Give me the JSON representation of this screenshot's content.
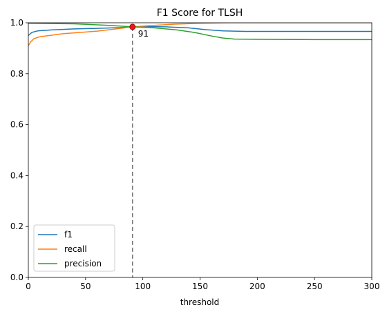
{
  "chart_data": {
    "type": "line",
    "title": "F1 Score for TLSH",
    "xlabel": "threshold",
    "ylabel": "",
    "xlim": [
      0,
      300
    ],
    "ylim": [
      0,
      1.0
    ],
    "xticks": [
      "0",
      "50",
      "100",
      "150",
      "200",
      "250",
      "300"
    ],
    "yticks": [
      "0.0",
      "0.2",
      "0.4",
      "0.6",
      "0.8",
      "1.0"
    ],
    "grid": false,
    "legend_position": "lower-left",
    "series": [
      {
        "name": "f1",
        "color": "#1f77b4",
        "points": [
          [
            0,
            0.95
          ],
          [
            3,
            0.962
          ],
          [
            8,
            0.968
          ],
          [
            20,
            0.972
          ],
          [
            40,
            0.976
          ],
          [
            60,
            0.978
          ],
          [
            80,
            0.981
          ],
          [
            91,
            0.984
          ],
          [
            100,
            0.985
          ],
          [
            120,
            0.984
          ],
          [
            140,
            0.98
          ],
          [
            155,
            0.973
          ],
          [
            170,
            0.968
          ],
          [
            190,
            0.966
          ],
          [
            250,
            0.966
          ],
          [
            300,
            0.966
          ]
        ]
      },
      {
        "name": "recall",
        "color": "#ff7f0e",
        "points": [
          [
            0,
            0.91
          ],
          [
            2,
            0.925
          ],
          [
            5,
            0.938
          ],
          [
            10,
            0.945
          ],
          [
            20,
            0.951
          ],
          [
            30,
            0.957
          ],
          [
            45,
            0.962
          ],
          [
            60,
            0.967
          ],
          [
            75,
            0.975
          ],
          [
            91,
            0.984
          ],
          [
            110,
            0.99
          ],
          [
            130,
            0.995
          ],
          [
            150,
            0.998
          ],
          [
            175,
            1.0
          ],
          [
            300,
            1.0
          ]
        ]
      },
      {
        "name": "precision",
        "color": "#2ca02c",
        "points": [
          [
            0,
            0.998
          ],
          [
            40,
            0.996
          ],
          [
            70,
            0.99
          ],
          [
            91,
            0.984
          ],
          [
            110,
            0.98
          ],
          [
            130,
            0.972
          ],
          [
            145,
            0.962
          ],
          [
            160,
            0.948
          ],
          [
            170,
            0.94
          ],
          [
            180,
            0.936
          ],
          [
            200,
            0.935
          ],
          [
            250,
            0.934
          ],
          [
            300,
            0.934
          ]
        ]
      }
    ],
    "annotations": [
      {
        "text": "91",
        "x": 91,
        "y": 0.984,
        "marker_color": "#e41a1c",
        "vline_x": 91
      }
    ]
  }
}
